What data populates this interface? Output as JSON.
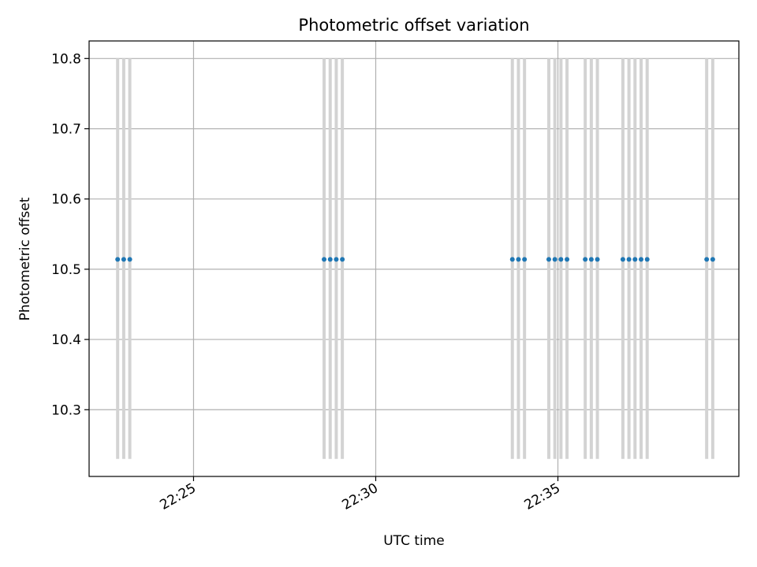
{
  "chart_data": {
    "type": "scatter",
    "title": "Photometric offset variation",
    "xlabel": "UTC time",
    "ylabel": "Photometric offset",
    "x_axis_type": "time",
    "x_ticks": [
      "22:25",
      "22:30",
      "22:35"
    ],
    "y_ticks": [
      "10.3",
      "10.4",
      "10.5",
      "10.6",
      "10.7",
      "10.8"
    ],
    "xlim": [
      "22:22:08",
      "22:39:58"
    ],
    "ylim": [
      10.205,
      10.825
    ],
    "grid": true,
    "legend": "none",
    "error_band": {
      "low": 10.23,
      "high": 10.8
    },
    "series": [
      {
        "x": [
          "22:22:55",
          "22:23:05",
          "22:23:15",
          "22:28:35",
          "22:28:45",
          "22:28:55",
          "22:29:05",
          "22:33:45",
          "22:33:55",
          "22:34:05",
          "22:34:45",
          "22:34:55",
          "22:35:05",
          "22:35:15",
          "22:35:45",
          "22:35:55",
          "22:36:05",
          "22:36:47",
          "22:36:57",
          "22:37:07",
          "22:37:17",
          "22:37:27",
          "22:39:05",
          "22:39:15"
        ],
        "y": [
          10.514,
          10.514,
          10.514,
          10.514,
          10.514,
          10.514,
          10.514,
          10.514,
          10.514,
          10.514,
          10.514,
          10.514,
          10.514,
          10.514,
          10.514,
          10.514,
          10.514,
          10.514,
          10.514,
          10.514,
          10.514,
          10.514,
          10.514,
          10.514
        ]
      }
    ],
    "colors": {
      "points": "#1f77b4",
      "error_bars": "#d3d3d3",
      "grid": "#b0b0b0",
      "axes": "#000000"
    }
  }
}
